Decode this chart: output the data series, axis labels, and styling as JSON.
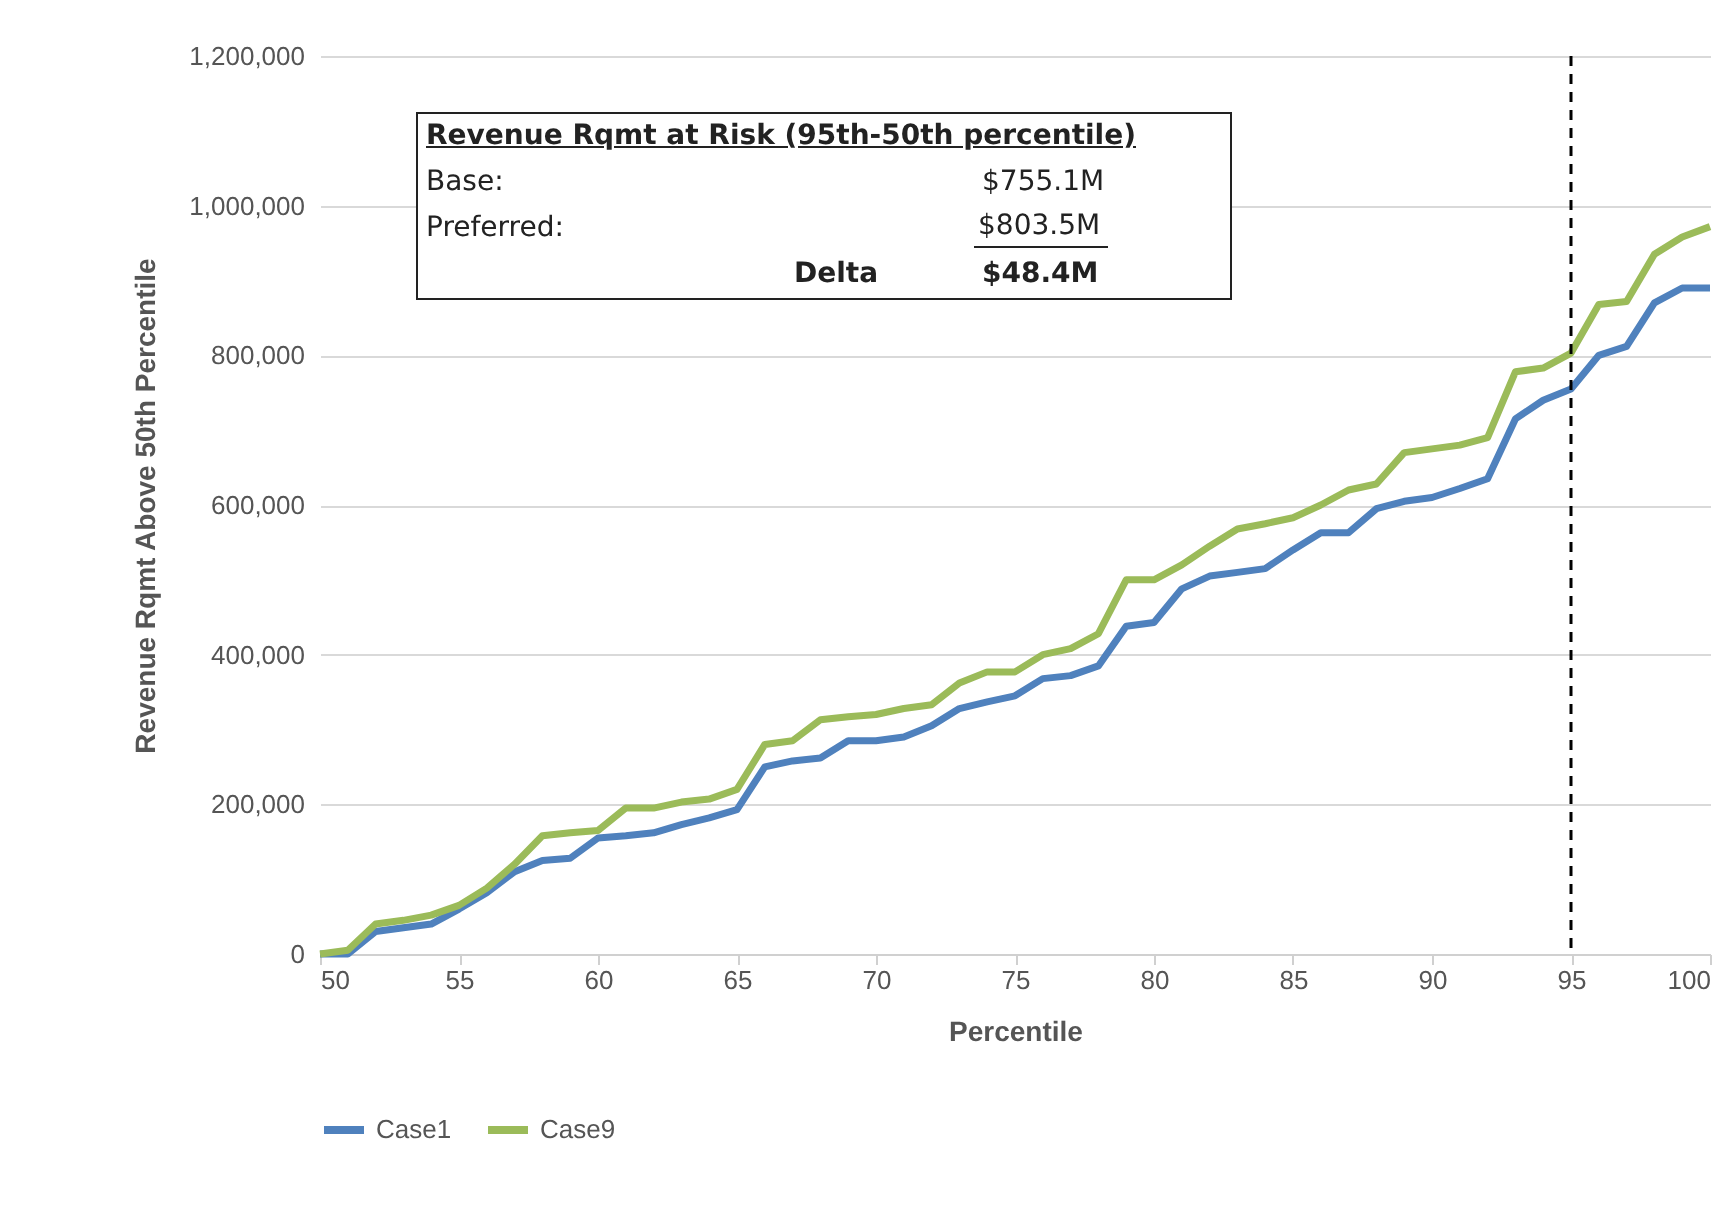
{
  "chart_data": {
    "type": "line",
    "xlabel": "Percentile",
    "ylabel": "Revenue Rqmt Above 50th Percentile",
    "x": [
      50,
      51,
      52,
      53,
      54,
      55,
      56,
      57,
      58,
      59,
      60,
      61,
      62,
      63,
      64,
      65,
      66,
      67,
      68,
      69,
      70,
      71,
      72,
      73,
      74,
      75,
      76,
      77,
      78,
      79,
      80,
      81,
      82,
      83,
      84,
      85,
      86,
      87,
      88,
      89,
      90,
      91,
      92,
      93,
      94,
      95,
      96,
      97,
      98,
      99,
      100
    ],
    "series": [
      {
        "name": "Case1",
        "color": "#4f81bd",
        "values": [
          0,
          0,
          30000,
          35000,
          40000,
          60000,
          82000,
          110000,
          125000,
          128000,
          155000,
          158000,
          162000,
          173000,
          182000,
          193000,
          250000,
          258000,
          262000,
          285000,
          285000,
          290000,
          305000,
          328000,
          337000,
          345000,
          368000,
          372000,
          385000,
          438000,
          443000,
          488000,
          505000,
          510000,
          515000,
          540000,
          563000,
          563000,
          595000,
          605000,
          610000,
          622000,
          635000,
          715000,
          740000,
          755000,
          800000,
          812000,
          870000,
          890000,
          890000
        ]
      },
      {
        "name": "Case9",
        "color": "#9bbb59",
        "values": [
          0,
          5000,
          40000,
          45000,
          52000,
          65000,
          88000,
          120000,
          158000,
          162000,
          165000,
          195000,
          195000,
          203000,
          207000,
          220000,
          280000,
          285000,
          313000,
          317000,
          320000,
          328000,
          333000,
          362000,
          377000,
          377000,
          400000,
          408000,
          428000,
          500000,
          500000,
          520000,
          545000,
          568000,
          575000,
          583000,
          600000,
          620000,
          628000,
          670000,
          675000,
          680000,
          690000,
          778000,
          783000,
          803000,
          868000,
          872000,
          935000,
          958000,
          972000
        ]
      }
    ],
    "xlim": [
      50,
      100
    ],
    "xticks": [
      50,
      55,
      60,
      65,
      70,
      75,
      80,
      85,
      90,
      95,
      100
    ],
    "ylim": [
      0,
      1200000
    ],
    "yticks": [
      0,
      {
        "value": 200000,
        "label": "200,000"
      },
      {
        "value": 400000,
        "label": "400,000"
      },
      {
        "value": 600000,
        "label": "600,000"
      },
      {
        "value": 800000,
        "label": "800,000"
      },
      {
        "value": 1000000,
        "label": "1,000,000"
      },
      {
        "value": 1200000,
        "label": "1,200,000"
      }
    ],
    "grid": "y",
    "legend": "bottom",
    "marker": "none",
    "line_style": "solid",
    "ref_lines": [
      {
        "axis": "x",
        "value": 95,
        "color": "#000000",
        "line_style": "dashed"
      }
    ],
    "annotations": [
      "Revenue Rqmt at Risk (95th-50th percentile)",
      "Base:",
      "$755.1M",
      "Preferred:",
      "$803.5M",
      "Delta",
      "$48.4M"
    ]
  }
}
